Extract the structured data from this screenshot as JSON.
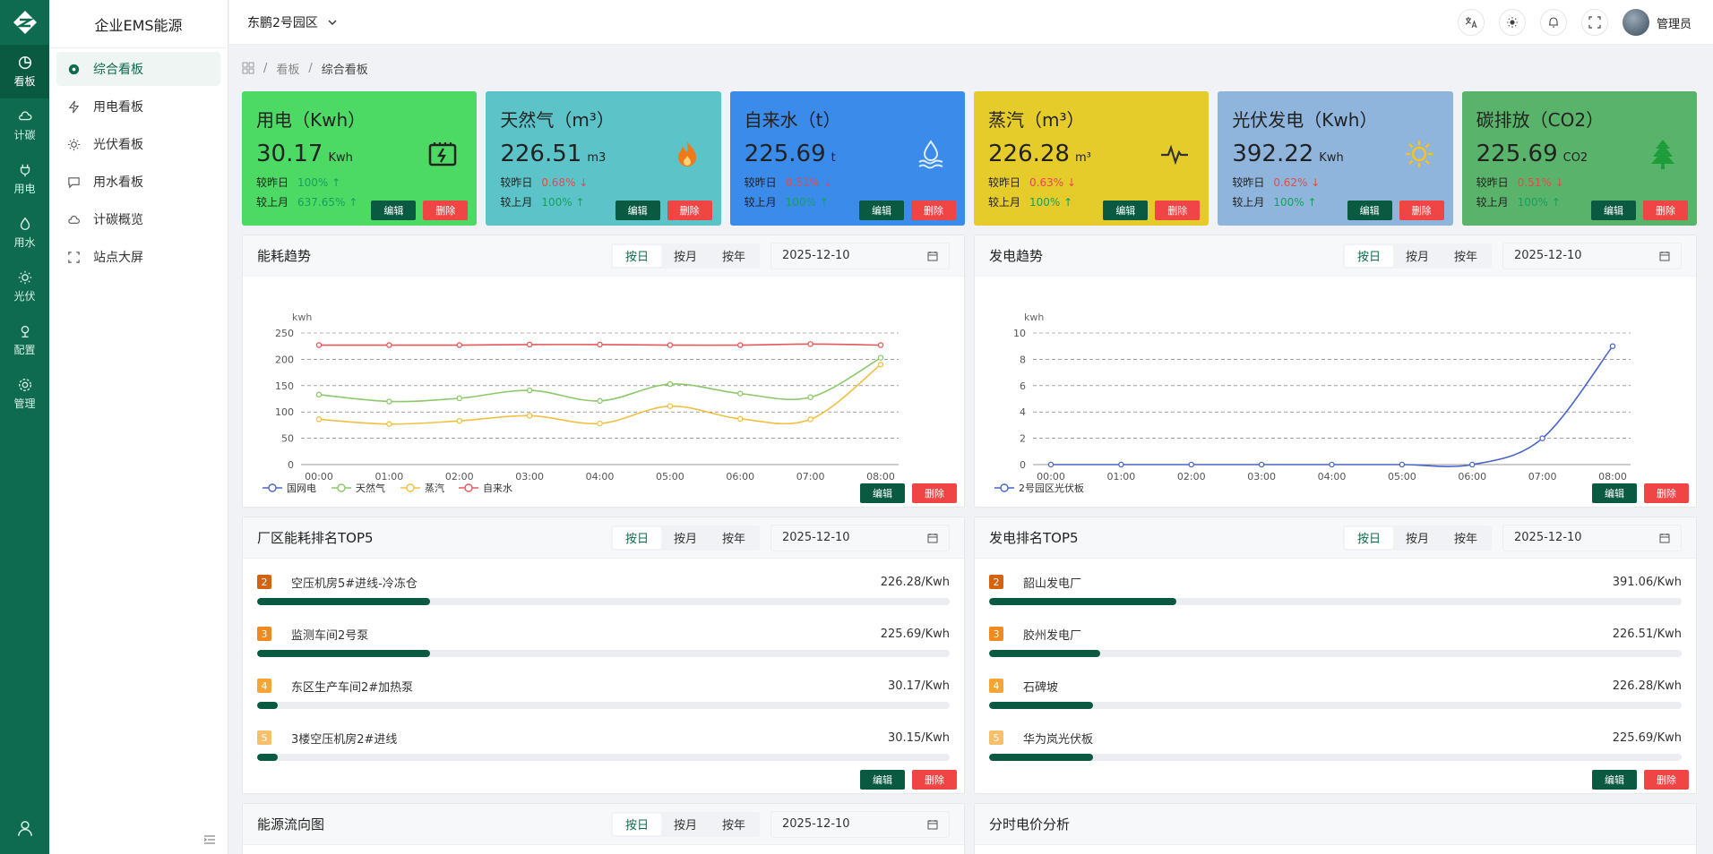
{
  "rail": [
    {
      "label": "看板",
      "icon": "pie-chart-icon",
      "active": true
    },
    {
      "label": "计碳",
      "icon": "cloud-icon"
    },
    {
      "label": "用电",
      "icon": "plug-icon"
    },
    {
      "label": "用水",
      "icon": "water-drop-icon"
    },
    {
      "label": "光伏",
      "icon": "sun-icon"
    },
    {
      "label": "配置",
      "icon": "config-icon"
    },
    {
      "label": "管理",
      "icon": "gear-icon"
    }
  ],
  "sidebar": {
    "title": "企业EMS能源",
    "items": [
      {
        "label": "综合看板",
        "icon": "dashboard-icon",
        "active": true
      },
      {
        "label": "用电看板",
        "icon": "lightning-icon"
      },
      {
        "label": "光伏看板",
        "icon": "sun-icon"
      },
      {
        "label": "用水看板",
        "icon": "chat-icon"
      },
      {
        "label": "计碳概览",
        "icon": "cloud-icon"
      },
      {
        "label": "站点大屏",
        "icon": "fullscreen-icon"
      }
    ]
  },
  "header": {
    "park": "东鹏2号园区",
    "user": "管理员"
  },
  "breadcrumb": {
    "b1": "看板",
    "b2": "综合看板"
  },
  "common": {
    "edit": "编辑",
    "del": "删除",
    "day": "按日",
    "month": "按月",
    "year": "按年",
    "date": "2025-12-10",
    "yday": "较昨日",
    "lmonth": "较上月"
  },
  "cards": [
    {
      "title": "用电（Kwh）",
      "value": "30.17",
      "unit": "Kwh",
      "d": "100%",
      "dDir": "up",
      "m": "637.65%",
      "mDir": "up",
      "bg": "#4cd964",
      "icon": "battery-icon"
    },
    {
      "title": "天然气（m³）",
      "value": "226.51",
      "unit": "m3",
      "d": "0.68%",
      "dDir": "down",
      "m": "100%",
      "mDir": "up",
      "bg": "#5cc4c9",
      "icon": "flame-icon"
    },
    {
      "title": "自来水（t）",
      "value": "225.69",
      "unit": "t",
      "d": "0.51%",
      "dDir": "down",
      "m": "100%",
      "mDir": "up",
      "bg": "#3b8beb",
      "icon": "water-icon"
    },
    {
      "title": "蒸汽（m³）",
      "value": "226.28",
      "unit": "m³",
      "d": "0.63%",
      "dDir": "down",
      "m": "100%",
      "mDir": "up",
      "bg": "#e6cc2a",
      "icon": "pulse-icon"
    },
    {
      "title": "光伏发电（Kwh）",
      "value": "392.22",
      "unit": "Kwh",
      "d": "0.62%",
      "dDir": "down",
      "m": "100%",
      "mDir": "up",
      "bg": "#8fb5dc",
      "icon": "sun-icon"
    },
    {
      "title": "碳排放（CO2）",
      "value": "225.69",
      "unit": "CO2",
      "d": "0.51%",
      "dDir": "down",
      "m": "100%",
      "mDir": "up",
      "bg": "#5ab36a",
      "icon": "tree-icon"
    }
  ],
  "panels": {
    "energy": "能耗趋势",
    "power": "发电趋势",
    "rank1": "厂区能耗排名TOP5",
    "rank2": "发电排名TOP5",
    "flow": "能源流向图",
    "tou": "分时电价分析"
  },
  "chart_data": [
    {
      "type": "line",
      "title": "能耗趋势",
      "ylabel": "kwh",
      "ylim": [
        0,
        250
      ],
      "yticks": [
        0,
        50,
        100,
        150,
        200,
        250
      ],
      "x": [
        "00:00",
        "01:00",
        "02:00",
        "03:00",
        "04:00",
        "05:00",
        "06:00",
        "07:00",
        "08:00"
      ],
      "legend_position": "bottom-left",
      "series": [
        {
          "name": "国网电",
          "color": "#4a64c9",
          "values": [
            null,
            null,
            null,
            null,
            null,
            null,
            null,
            null,
            null
          ]
        },
        {
          "name": "天然气",
          "color": "#8cc96b",
          "values": [
            133,
            120,
            126,
            141,
            121,
            153,
            135,
            128,
            203
          ]
        },
        {
          "name": "蒸汽",
          "color": "#f0c044",
          "values": [
            86,
            77,
            83,
            93,
            78,
            111,
            87,
            86,
            190
          ]
        },
        {
          "name": "自来水",
          "color": "#e35a5a",
          "values": [
            227,
            227,
            227,
            228,
            228,
            227,
            227,
            229,
            227
          ]
        }
      ]
    },
    {
      "type": "line",
      "title": "发电趋势",
      "ylabel": "kwh",
      "ylim": [
        0,
        10
      ],
      "yticks": [
        0,
        2,
        4,
        6,
        8,
        10
      ],
      "x": [
        "00:00",
        "01:00",
        "02:00",
        "03:00",
        "04:00",
        "05:00",
        "06:00",
        "07:00",
        "08:00"
      ],
      "legend_position": "bottom-left",
      "series": [
        {
          "name": "2号园区光伏板",
          "color": "#4a64c9",
          "values": [
            0,
            0,
            0,
            0,
            0,
            0,
            0,
            2,
            9
          ]
        }
      ]
    }
  ],
  "rank1": [
    {
      "no": "2",
      "name": "空压机房5#进线-冷冻仓",
      "value": "226.28/Kwh",
      "ratio": 0.25,
      "color": "#d4620f"
    },
    {
      "no": "3",
      "name": "监测车间2号泵",
      "value": "225.69/Kwh",
      "ratio": 0.25,
      "color": "#f08a1c"
    },
    {
      "no": "4",
      "name": "东区生产车间2#加热泵",
      "value": "30.17/Kwh",
      "ratio": 0.03,
      "color": "#f4a534"
    },
    {
      "no": "5",
      "name": "3楼空压机房2#进线",
      "value": "30.15/Kwh",
      "ratio": 0.03,
      "color": "#f7bf6a"
    }
  ],
  "rank2": [
    {
      "no": "2",
      "name": "韶山发电厂",
      "value": "391.06/Kwh",
      "ratio": 0.27,
      "color": "#d4620f"
    },
    {
      "no": "3",
      "name": "胶州发电厂",
      "value": "226.51/Kwh",
      "ratio": 0.16,
      "color": "#f08a1c"
    },
    {
      "no": "4",
      "name": "石碑坡",
      "value": "226.28/Kwh",
      "ratio": 0.15,
      "color": "#f4a534"
    },
    {
      "no": "5",
      "name": "华为岚光伏板",
      "value": "225.69/Kwh",
      "ratio": 0.15,
      "color": "#f7bf6a"
    }
  ]
}
